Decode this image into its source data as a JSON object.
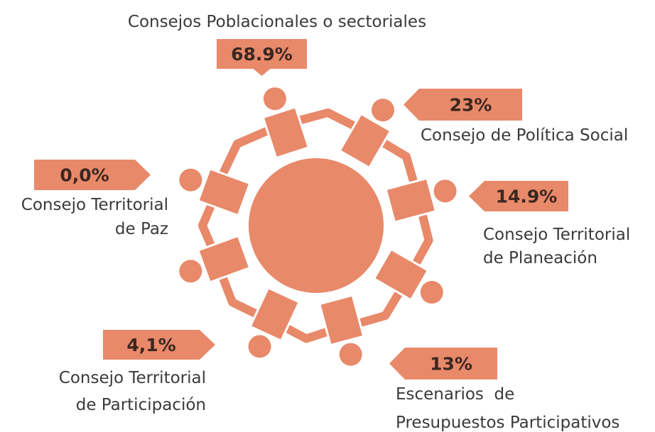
{
  "items": [
    {
      "value": "68.9%",
      "label": [
        "Consejos Poblacionales o sectoriales"
      ]
    },
    {
      "value": "23%",
      "label": [
        "Consejo de Política Social"
      ]
    },
    {
      "value": "14.9%",
      "label": [
        "Consejo Territorial",
        "de Planeación"
      ]
    },
    {
      "value": "13%",
      "label": [
        "Escenarios  de",
        "Presupuestos Participativos"
      ]
    },
    {
      "value": "4,1%",
      "label": [
        "Consejo Territorial",
        "de Participación"
      ]
    },
    {
      "value": "0,0%",
      "label": [
        "Consejo Territorial",
        "de Paz"
      ]
    }
  ]
}
